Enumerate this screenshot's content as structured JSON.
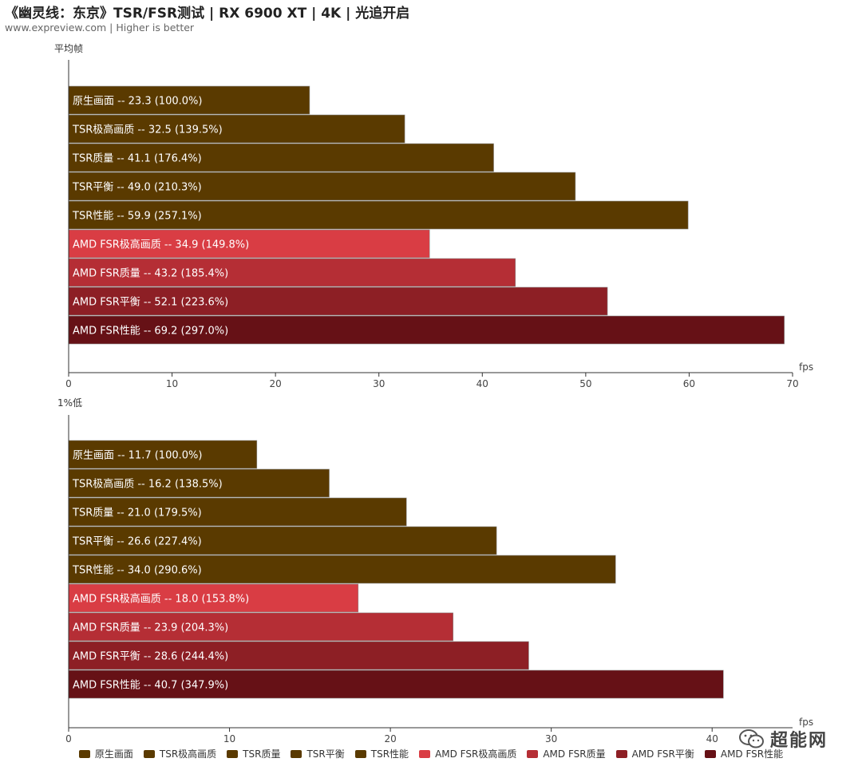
{
  "header": {
    "title": "《幽灵线：东京》TSR/FSR测试 | RX 6900 XT | 4K | 光追开启",
    "subtitle": "www.expreview.com | Higher is better"
  },
  "watermark": {
    "text": "超能网",
    "icon": "wechat-logo-icon"
  },
  "colors": {
    "tsr": "#5a3a00",
    "fsr_ultra": "#d93d44",
    "fsr_quality": "#b52e35",
    "fsr_balanced": "#8d1f25",
    "fsr_performance": "#661116"
  },
  "legend": [
    {
      "label": "原生画面",
      "color": "#5a3a00"
    },
    {
      "label": "TSR极高画质",
      "color": "#5a3a00"
    },
    {
      "label": "TSR质量",
      "color": "#5a3a00"
    },
    {
      "label": "TSR平衡",
      "color": "#5a3a00"
    },
    {
      "label": "TSR性能",
      "color": "#5a3a00"
    },
    {
      "label": "AMD FSR极高画质",
      "color": "#d93d44"
    },
    {
      "label": "AMD FSR质量",
      "color": "#b52e35"
    },
    {
      "label": "AMD FSR平衡",
      "color": "#8d1f25"
    },
    {
      "label": "AMD FSR性能",
      "color": "#661116"
    }
  ],
  "chart_data": [
    {
      "type": "bar",
      "orientation": "horizontal",
      "title": "平均帧",
      "xlabel": "fps",
      "xlim": [
        0,
        70
      ],
      "xticks": [
        0,
        10,
        20,
        30,
        40,
        50,
        60,
        70
      ],
      "categories": [
        "原生画面",
        "TSR极高画质",
        "TSR质量",
        "TSR平衡",
        "TSR性能",
        "AMD FSR极高画质",
        "AMD FSR质量",
        "AMD FSR平衡",
        "AMD FSR性能"
      ],
      "values": [
        23.3,
        32.5,
        41.1,
        49.0,
        59.9,
        34.9,
        43.2,
        52.1,
        69.2
      ],
      "percent_labels": [
        "100.0%",
        "139.5%",
        "176.4%",
        "210.3%",
        "257.1%",
        "149.8%",
        "185.4%",
        "223.6%",
        "297.0%"
      ],
      "bar_colors": [
        "#5a3a00",
        "#5a3a00",
        "#5a3a00",
        "#5a3a00",
        "#5a3a00",
        "#d93d44",
        "#b52e35",
        "#8d1f25",
        "#661116"
      ]
    },
    {
      "type": "bar",
      "orientation": "horizontal",
      "title": "1%低",
      "xlabel": "fps",
      "xlim": [
        0,
        45
      ],
      "xticks": [
        0,
        10,
        20,
        30,
        40
      ],
      "categories": [
        "原生画面",
        "TSR极高画质",
        "TSR质量",
        "TSR平衡",
        "TSR性能",
        "AMD FSR极高画质",
        "AMD FSR质量",
        "AMD FSR平衡",
        "AMD FSR性能"
      ],
      "values": [
        11.7,
        16.2,
        21.0,
        26.6,
        34.0,
        18.0,
        23.9,
        28.6,
        40.7
      ],
      "percent_labels": [
        "100.0%",
        "138.5%",
        "179.5%",
        "227.4%",
        "290.6%",
        "153.8%",
        "204.3%",
        "244.4%",
        "347.9%"
      ],
      "bar_colors": [
        "#5a3a00",
        "#5a3a00",
        "#5a3a00",
        "#5a3a00",
        "#5a3a00",
        "#d93d44",
        "#b52e35",
        "#8d1f25",
        "#661116"
      ]
    }
  ]
}
